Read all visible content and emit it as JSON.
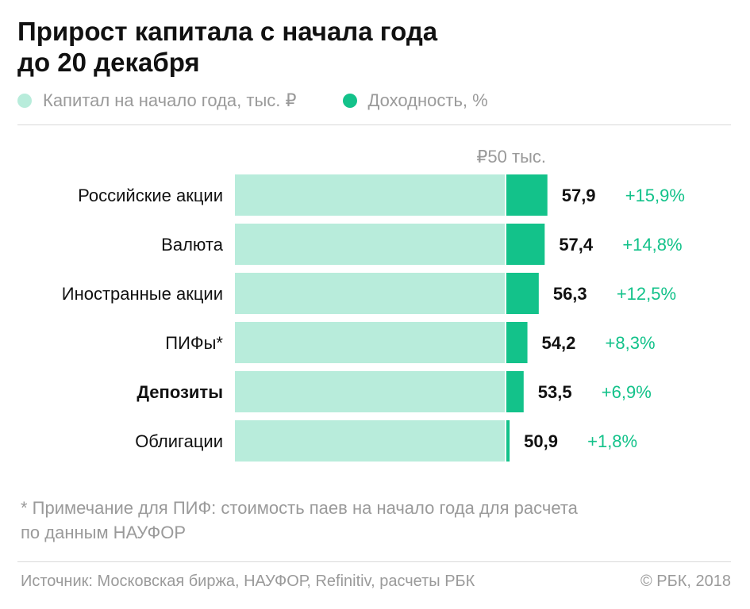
{
  "title_line1": "Прирост капитала с начала года",
  "title_line2": "до 20 декабря",
  "legend": {
    "capital": "Капитал на начало года, тыс. ₽",
    "yield": "Доходность, %"
  },
  "colors": {
    "capital": "#b8ecdb",
    "yield": "#13c28a",
    "yield_text": "#13c28a",
    "value_text": "#111111",
    "muted": "#9a9a9a"
  },
  "chart_data": {
    "type": "bar",
    "stacked": true,
    "orientation": "horizontal",
    "categories": [
      "Российские акции",
      "Валюта",
      "Иностранные акции",
      "ПИФы*",
      "Депозиты",
      "Облигации"
    ],
    "bold_categories": [
      "Депозиты"
    ],
    "series": [
      {
        "name": "Капитал на начало года, тыс. ₽",
        "values": [
          50,
          50,
          50,
          50,
          50,
          50
        ]
      },
      {
        "name": "Доходность, %",
        "values": [
          7.9,
          7.4,
          6.3,
          4.2,
          3.5,
          0.9
        ]
      }
    ],
    "totals": [
      57.9,
      57.4,
      56.3,
      54.2,
      53.5,
      50.9
    ],
    "total_labels": [
      "57,9",
      "57,4",
      "56,3",
      "54,2",
      "53,5",
      "50,9"
    ],
    "yield_labels": [
      "+15,9%",
      "+14,8%",
      "+12,5%",
      "+8,3%",
      "+6,9%",
      "+1,8%"
    ],
    "reference_label": "₽50 тыс.",
    "xlim": [
      0,
      57.9
    ]
  },
  "note_line1": "* Примечание для ПИФ: стоимость паев на начало года для расчета",
  "note_line2": "по данным НАУФОР",
  "source": "Источник: Московская биржа, НАУФОР, Refinitiv, расчеты РБК",
  "copyright": "© РБК, 2018"
}
